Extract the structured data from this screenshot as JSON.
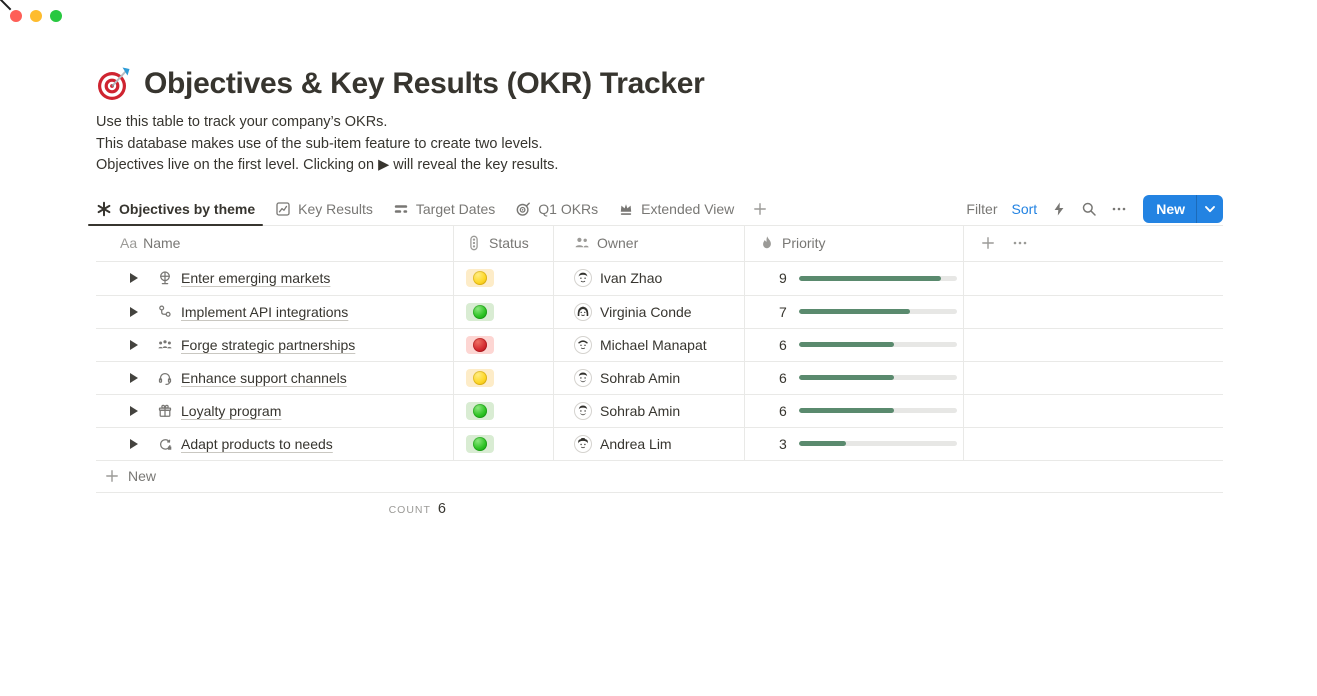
{
  "window": {
    "traffic_lights": [
      "close",
      "minimize",
      "zoom"
    ]
  },
  "page": {
    "title": "Objectives & Key Results (OKR) Tracker",
    "title_icon": "dart-target-emoji",
    "description_lines": [
      "Use this table to track your company’s OKRs.",
      "This database makes use of the sub-item feature to create two levels.",
      "Objectives live on the first level. Clicking on ▶ will reveal the key results."
    ]
  },
  "view_tabs": {
    "tabs": [
      {
        "label": "Objectives by theme",
        "icon": "asterisk-view-icon",
        "active": true
      },
      {
        "label": "Key Results",
        "icon": "chart-view-icon",
        "active": false
      },
      {
        "label": "Target Dates",
        "icon": "timeline-view-icon",
        "active": false
      },
      {
        "label": "Q1 OKRs",
        "icon": "target-view-icon",
        "active": false
      },
      {
        "label": "Extended View",
        "icon": "crown-view-icon",
        "active": false
      }
    ],
    "add_view_icon": "plus-icon"
  },
  "toolbar": {
    "filter_label": "Filter",
    "sort_label": "Sort",
    "icons": [
      "lightning-bolt-icon",
      "search-icon",
      "more-icon"
    ],
    "new_button": {
      "label": "New",
      "accent_color": "#2383e2",
      "chevron_icon": "chevron-down-icon"
    }
  },
  "table": {
    "columns": [
      {
        "label": "Name",
        "icon": "text-icon",
        "icon_text": "Aa"
      },
      {
        "label": "Status",
        "icon": "traffic-light-icon"
      },
      {
        "label": "Owner",
        "icon": "people-icon"
      },
      {
        "label": "Priority",
        "icon": "flame-icon"
      }
    ],
    "header_extras": [
      "plus-icon",
      "more-icon"
    ],
    "priority_max": 10,
    "rows": [
      {
        "name": "Enter emerging markets",
        "icon": "desk-globe-icon",
        "status": "yellow",
        "owner": "Ivan Zhao",
        "priority": 9,
        "priority_percent": 90
      },
      {
        "name": "Implement API integrations",
        "icon": "branch-nodes-icon",
        "status": "green",
        "owner": "Virginia Conde",
        "priority": 7,
        "priority_percent": 70
      },
      {
        "name": "Forge strategic partnerships",
        "icon": "people-group-icon",
        "status": "red",
        "owner": "Michael Manapat",
        "priority": 6,
        "priority_percent": 60
      },
      {
        "name": "Enhance support channels",
        "icon": "headset-icon",
        "status": "yellow",
        "owner": "Sohrab Amin",
        "priority": 6,
        "priority_percent": 60
      },
      {
        "name": "Loyalty program",
        "icon": "gift-icon",
        "status": "green",
        "owner": "Sohrab Amin",
        "priority": 6,
        "priority_percent": 60
      },
      {
        "name": "Adapt products to needs",
        "icon": "cycle-arrow-icon",
        "status": "green",
        "owner": "Andrea Lim",
        "priority": 3,
        "priority_percent": 30
      }
    ],
    "new_row_label": "New",
    "count_label": "COUNT",
    "count_value": "6"
  },
  "colors": {
    "accent_blue": "#2383e2",
    "bar_green": "#5a8a6e",
    "status_yellow_bg": "#fdecc8",
    "status_green_bg": "#d9ecd3",
    "status_red_bg": "#fdd6d3",
    "row_border": "#e9e9e7",
    "text_primary": "#37352f",
    "text_secondary": "#787774"
  }
}
